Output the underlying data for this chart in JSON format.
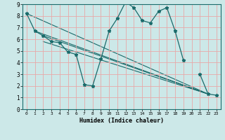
{
  "xlabel": "Humidex (Indice chaleur)",
  "xlim": [
    -0.5,
    23.5
  ],
  "ylim": [
    0,
    9
  ],
  "xticks": [
    0,
    1,
    2,
    3,
    4,
    5,
    6,
    7,
    8,
    9,
    10,
    11,
    12,
    13,
    14,
    15,
    16,
    17,
    18,
    19,
    20,
    21,
    22,
    23
  ],
  "yticks": [
    0,
    1,
    2,
    3,
    4,
    5,
    6,
    7,
    8,
    9
  ],
  "bg_color": "#cce8e8",
  "line_color": "#1a6b6b",
  "grid_color": "#e8a8a8",
  "zigzag": {
    "x": [
      0,
      1,
      2,
      3,
      4,
      5,
      6,
      7,
      8,
      9,
      10,
      11,
      12,
      13,
      14,
      15,
      16,
      17,
      18,
      19,
      20,
      21,
      22,
      23
    ],
    "y": [
      8.2,
      6.7,
      6.3,
      5.8,
      5.7,
      4.9,
      4.7,
      2.1,
      2.0,
      4.3,
      6.7,
      7.8,
      9.2,
      8.7,
      7.6,
      7.4,
      8.4,
      8.7,
      6.7,
      4.2,
      null,
      3.0,
      1.3,
      1.2
    ]
  },
  "straight_lines": [
    {
      "x": [
        0,
        22
      ],
      "y": [
        8.2,
        1.3
      ]
    },
    {
      "x": [
        1,
        22
      ],
      "y": [
        6.7,
        1.3
      ]
    },
    {
      "x": [
        2,
        22
      ],
      "y": [
        6.3,
        1.3
      ]
    },
    {
      "x": [
        2,
        22
      ],
      "y": [
        5.8,
        1.3
      ]
    }
  ]
}
